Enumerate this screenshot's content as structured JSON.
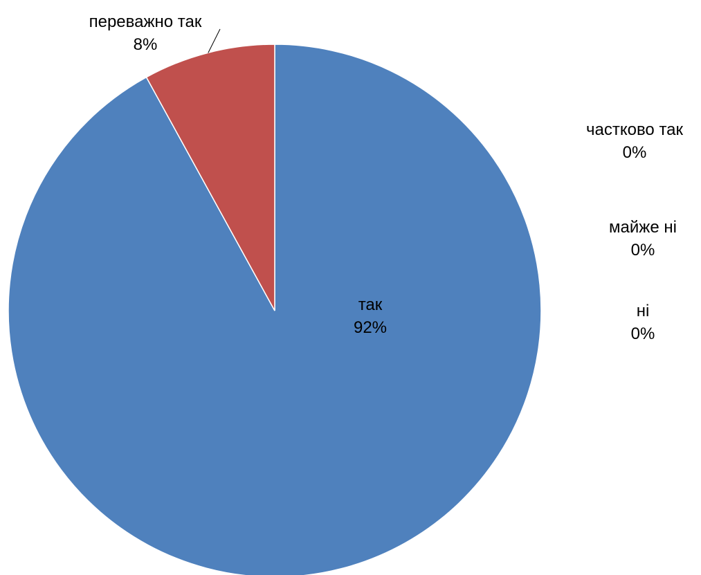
{
  "chart_data": {
    "type": "pie",
    "title": "",
    "slices": [
      {
        "label": "так",
        "value": 92,
        "value_label": "92%",
        "color": "#4F81BD"
      },
      {
        "label": "переважно так",
        "value": 8,
        "value_label": "8%",
        "color": "#C0504D"
      },
      {
        "label": "частково так",
        "value": 0,
        "value_label": "0%",
        "color": "#9BBB59"
      },
      {
        "label": "майже ні",
        "value": 0,
        "value_label": "0%",
        "color": "#8064A2"
      },
      {
        "label": "ні",
        "value": 0,
        "value_label": "0%",
        "color": "#4BACC6"
      }
    ],
    "start_angle": "12 o'clock",
    "direction": "clockwise",
    "legend": "none"
  }
}
